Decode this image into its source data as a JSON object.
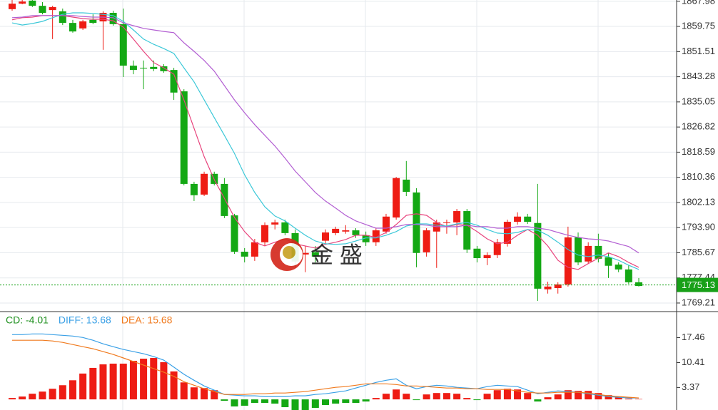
{
  "watermark": "金 盛",
  "chart_data": [
    {
      "type": "candlestick",
      "ylim": [
        1766.4,
        1868.4
      ],
      "yticks": [
        1867.98,
        1859.75,
        1851.51,
        1843.28,
        1835.05,
        1826.82,
        1818.59,
        1810.36,
        1802.13,
        {
          "value": 1793.9,
          "label": "1793.90"
        },
        1785.67,
        1777.44,
        1769.21
      ],
      "grid": true,
      "up_color": "#ee1c14",
      "down_color": "#14a814",
      "last_price": 1775.13,
      "last_price_color": "#18a018",
      "open": [
        1865.4,
        1867.2,
        1868.2,
        1866.5,
        1865.1,
        1864.7,
        1860.9,
        1859.1,
        1861.9,
        1861.4,
        1864.2,
        1860.5,
        1846.9,
        1846.2,
        1846.5,
        1846.7,
        1845.5,
        1838.5,
        1808.2,
        1804.7,
        1811.5,
        1808.2,
        1797.9,
        1786.0,
        1784.4,
        1789.1,
        1794.9,
        1795.6,
        1792.1,
        1785.1,
        1785.8,
        1789.6,
        1792.1,
        1792.6,
        1793.0,
        1791.4,
        1789.1,
        1792.6,
        1797.2,
        1809.6,
        1805.4,
        1785.8,
        1792.6,
        1795.4,
        1795.6,
        1799.3,
        1787.0,
        1783.9,
        1784.9,
        1788.6,
        1795.8,
        1797.5,
        1795.4,
        1773.7,
        1774.1,
        1775.3,
        1790.7,
        1782.8,
        1787.9,
        1784.2,
        1781.8,
        1780.2,
        1776.0
      ],
      "close": [
        1867.2,
        1867.9,
        1866.5,
        1864.2,
        1866.1,
        1860.9,
        1858.1,
        1861.4,
        1860.9,
        1864.2,
        1860.5,
        1846.9,
        1845.5,
        1846.0,
        1845.8,
        1845.1,
        1838.1,
        1808.2,
        1804.5,
        1811.5,
        1808.2,
        1797.7,
        1786.0,
        1784.4,
        1789.1,
        1794.7,
        1795.6,
        1792.1,
        1782.8,
        1785.6,
        1784.4,
        1792.3,
        1793.5,
        1793.0,
        1791.4,
        1789.1,
        1793.0,
        1797.5,
        1810.1,
        1805.6,
        1785.6,
        1793.0,
        1795.6,
        1795.6,
        1799.3,
        1786.7,
        1783.9,
        1784.9,
        1789.1,
        1795.8,
        1797.5,
        1795.8,
        1773.9,
        1774.6,
        1775.3,
        1790.7,
        1782.5,
        1787.9,
        1783.7,
        1781.4,
        1780.2,
        1776.0,
        1774.8
      ],
      "high": [
        1868.4,
        1868.4,
        1868.4,
        1867.7,
        1866.5,
        1865.6,
        1861.9,
        1861.9,
        1863.7,
        1864.7,
        1864.9,
        1865.6,
        1848.6,
        1848.6,
        1848.6,
        1847.4,
        1846.2,
        1839.2,
        1808.9,
        1812.2,
        1812.2,
        1810.1,
        1798.4,
        1787.2,
        1790.2,
        1795.6,
        1796.5,
        1796.5,
        1793.3,
        1787.9,
        1787.9,
        1793.3,
        1794.2,
        1794.7,
        1793.7,
        1792.6,
        1793.7,
        1798.4,
        1810.5,
        1815.7,
        1806.8,
        1793.7,
        1796.5,
        1796.5,
        1800.0,
        1800.0,
        1787.9,
        1785.8,
        1790.2,
        1796.5,
        1798.9,
        1798.4,
        1808.2,
        1776.2,
        1776.0,
        1794.2,
        1792.3,
        1789.1,
        1791.9,
        1785.6,
        1782.5,
        1781.6,
        1777.4
      ],
      "low": [
        1864.9,
        1867.0,
        1866.1,
        1863.7,
        1855.6,
        1860.2,
        1857.7,
        1858.6,
        1860.5,
        1852.1,
        1860.0,
        1843.2,
        1844.1,
        1839.2,
        1845.1,
        1844.6,
        1835.7,
        1807.7,
        1802.6,
        1804.2,
        1807.7,
        1797.0,
        1785.3,
        1782.5,
        1783.0,
        1787.9,
        1793.3,
        1791.4,
        1780.9,
        1779.3,
        1782.5,
        1788.6,
        1791.4,
        1791.9,
        1790.5,
        1787.9,
        1787.9,
        1791.9,
        1796.5,
        1804.2,
        1780.9,
        1784.4,
        1780.7,
        1791.9,
        1791.4,
        1785.6,
        1782.5,
        1781.6,
        1783.9,
        1787.7,
        1794.9,
        1795.1,
        1769.9,
        1772.3,
        1772.3,
        1774.6,
        1781.6,
        1782.1,
        1782.5,
        1777.4,
        1779.3,
        1775.5,
        1774.6
      ],
      "lines": [
        {
          "color": "#e8437c",
          "values": [
            1861.9,
            1862.6,
            1862.8,
            1863.3,
            1863.3,
            1863.3,
            1862.8,
            1862.3,
            1862.1,
            1862.1,
            1861.6,
            1859.5,
            1855.6,
            1851.6,
            1847.9,
            1846.2,
            1844.1,
            1835.7,
            1826.4,
            1817.1,
            1809.6,
            1803.5,
            1797.2,
            1792.6,
            1789.1,
            1787.9,
            1789.1,
            1790.2,
            1788.6,
            1787.9,
            1787.2,
            1788.4,
            1789.1,
            1790.0,
            1791.4,
            1791.4,
            1790.7,
            1792.3,
            1794.9,
            1797.9,
            1798.4,
            1797.9,
            1795.6,
            1794.2,
            1794.9,
            1794.7,
            1792.6,
            1790.2,
            1788.6,
            1789.1,
            1791.4,
            1793.3,
            1791.4,
            1787.9,
            1783.2,
            1780.9,
            1780.2,
            1782.1,
            1783.9,
            1785.6,
            1784.4,
            1782.5,
            1780.9
          ]
        },
        {
          "color": "#3cc8d8",
          "values": [
            1860.9,
            1860.2,
            1860.7,
            1861.4,
            1862.6,
            1863.7,
            1864.2,
            1864.2,
            1864.0,
            1863.7,
            1863.3,
            1861.4,
            1858.6,
            1855.6,
            1853.9,
            1852.5,
            1850.9,
            1846.2,
            1841.6,
            1835.7,
            1829.9,
            1824.1,
            1818.2,
            1811.2,
            1805.4,
            1800.7,
            1797.7,
            1796.1,
            1793.7,
            1791.4,
            1789.5,
            1788.6,
            1788.4,
            1788.6,
            1789.5,
            1790.5,
            1790.5,
            1791.4,
            1792.6,
            1794.4,
            1795.1,
            1795.1,
            1794.7,
            1794.4,
            1795.1,
            1795.6,
            1794.7,
            1793.3,
            1792.1,
            1791.9,
            1792.3,
            1793.3,
            1793.0,
            1791.4,
            1789.1,
            1786.7,
            1784.9,
            1784.4,
            1784.9,
            1784.4,
            1783.2,
            1781.6,
            1780.2
          ]
        },
        {
          "color": "#b25ed2",
          "values": [
            1862.6,
            1862.8,
            1863.3,
            1863.3,
            1863.3,
            1863.3,
            1863.3,
            1863.0,
            1862.8,
            1862.8,
            1862.6,
            1860.9,
            1860.0,
            1859.1,
            1858.6,
            1858.1,
            1857.7,
            1854.4,
            1851.6,
            1848.6,
            1845.1,
            1840.4,
            1835.7,
            1831.5,
            1827.6,
            1824.1,
            1820.6,
            1816.6,
            1812.4,
            1808.9,
            1805.4,
            1802.6,
            1800.3,
            1797.9,
            1796.1,
            1794.9,
            1793.7,
            1793.7,
            1794.2,
            1794.9,
            1794.9,
            1794.7,
            1794.2,
            1794.2,
            1794.2,
            1794.7,
            1794.2,
            1794.2,
            1793.7,
            1793.7,
            1794.2,
            1794.2,
            1793.7,
            1793.3,
            1792.3,
            1791.4,
            1790.7,
            1790.2,
            1790.0,
            1789.5,
            1788.6,
            1787.7,
            1785.6
          ]
        }
      ]
    },
    {
      "type": "macd",
      "ylim": [
        -3.0,
        24.2
      ],
      "yticks": [
        17.46,
        10.41,
        3.37
      ],
      "legend": [
        {
          "label": "CD: -4.01",
          "color": "#1d8f1d"
        },
        {
          "label": "DIFF: 13.68",
          "color": "#3aa0e6"
        },
        {
          "label": "DEA: 15.68",
          "color": "#f07a1e"
        }
      ],
      "up_color": "#ee1c14",
      "down_color": "#14a814",
      "values": [
        0.4,
        0.8,
        1.6,
        2.2,
        3.0,
        4.0,
        5.4,
        7.3,
        8.9,
        9.9,
        10.1,
        10.1,
        10.9,
        11.5,
        11.7,
        10.5,
        7.9,
        4.8,
        3.4,
        3.2,
        2.6,
        -0.4,
        -2.0,
        -1.8,
        -1.0,
        -1.0,
        -1.2,
        -2.2,
        -3.0,
        -3.0,
        -2.4,
        -1.6,
        -1.2,
        -1.0,
        -1.0,
        -0.6,
        0.4,
        1.6,
        2.8,
        1.6,
        -0.2,
        1.4,
        1.8,
        1.8,
        1.6,
        0.4,
        -0.2,
        1.6,
        2.6,
        3.0,
        2.8,
        1.8,
        -0.6,
        0.6,
        1.4,
        2.6,
        2.4,
        2.4,
        1.8,
        1.2,
        0.6,
        0.2,
        0.1
      ],
      "lines": [
        {
          "color": "#3aa0e6",
          "values": [
            18.3,
            18.3,
            18.5,
            18.5,
            18.3,
            18.1,
            17.9,
            17.5,
            16.7,
            15.7,
            14.9,
            14.1,
            13.5,
            12.9,
            12.1,
            11.1,
            9.1,
            7.1,
            5.4,
            3.8,
            2.6,
            1.4,
            1.2,
            1.0,
            1.0,
            0.8,
            0.8,
            0.8,
            1.0,
            1.0,
            1.4,
            1.6,
            2.0,
            2.4,
            3.2,
            4.0,
            4.8,
            5.4,
            5.8,
            4.0,
            3.0,
            3.6,
            4.0,
            3.8,
            3.4,
            3.2,
            3.0,
            3.6,
            4.0,
            3.8,
            3.6,
            2.6,
            1.6,
            2.0,
            2.4,
            2.2,
            2.0,
            1.6,
            1.2,
            0.8,
            0.6,
            0.4,
            0.4
          ]
        },
        {
          "color": "#f07a1e",
          "values": [
            16.7,
            16.7,
            16.7,
            16.7,
            16.5,
            16.1,
            15.5,
            14.9,
            14.3,
            13.5,
            12.7,
            11.7,
            10.7,
            9.7,
            8.7,
            7.7,
            6.5,
            5.0,
            4.0,
            3.0,
            2.2,
            1.4,
            1.4,
            1.4,
            1.6,
            1.6,
            1.8,
            1.8,
            2.0,
            2.2,
            2.6,
            3.0,
            3.4,
            3.6,
            4.0,
            4.4,
            4.4,
            4.4,
            4.2,
            3.8,
            3.8,
            3.6,
            3.4,
            3.2,
            3.2,
            3.0,
            3.0,
            2.8,
            2.8,
            2.8,
            2.4,
            2.0,
            1.8,
            1.8,
            2.0,
            2.0,
            2.0,
            1.8,
            1.4,
            1.0,
            0.8,
            0.6,
            0.4
          ]
        }
      ]
    }
  ]
}
